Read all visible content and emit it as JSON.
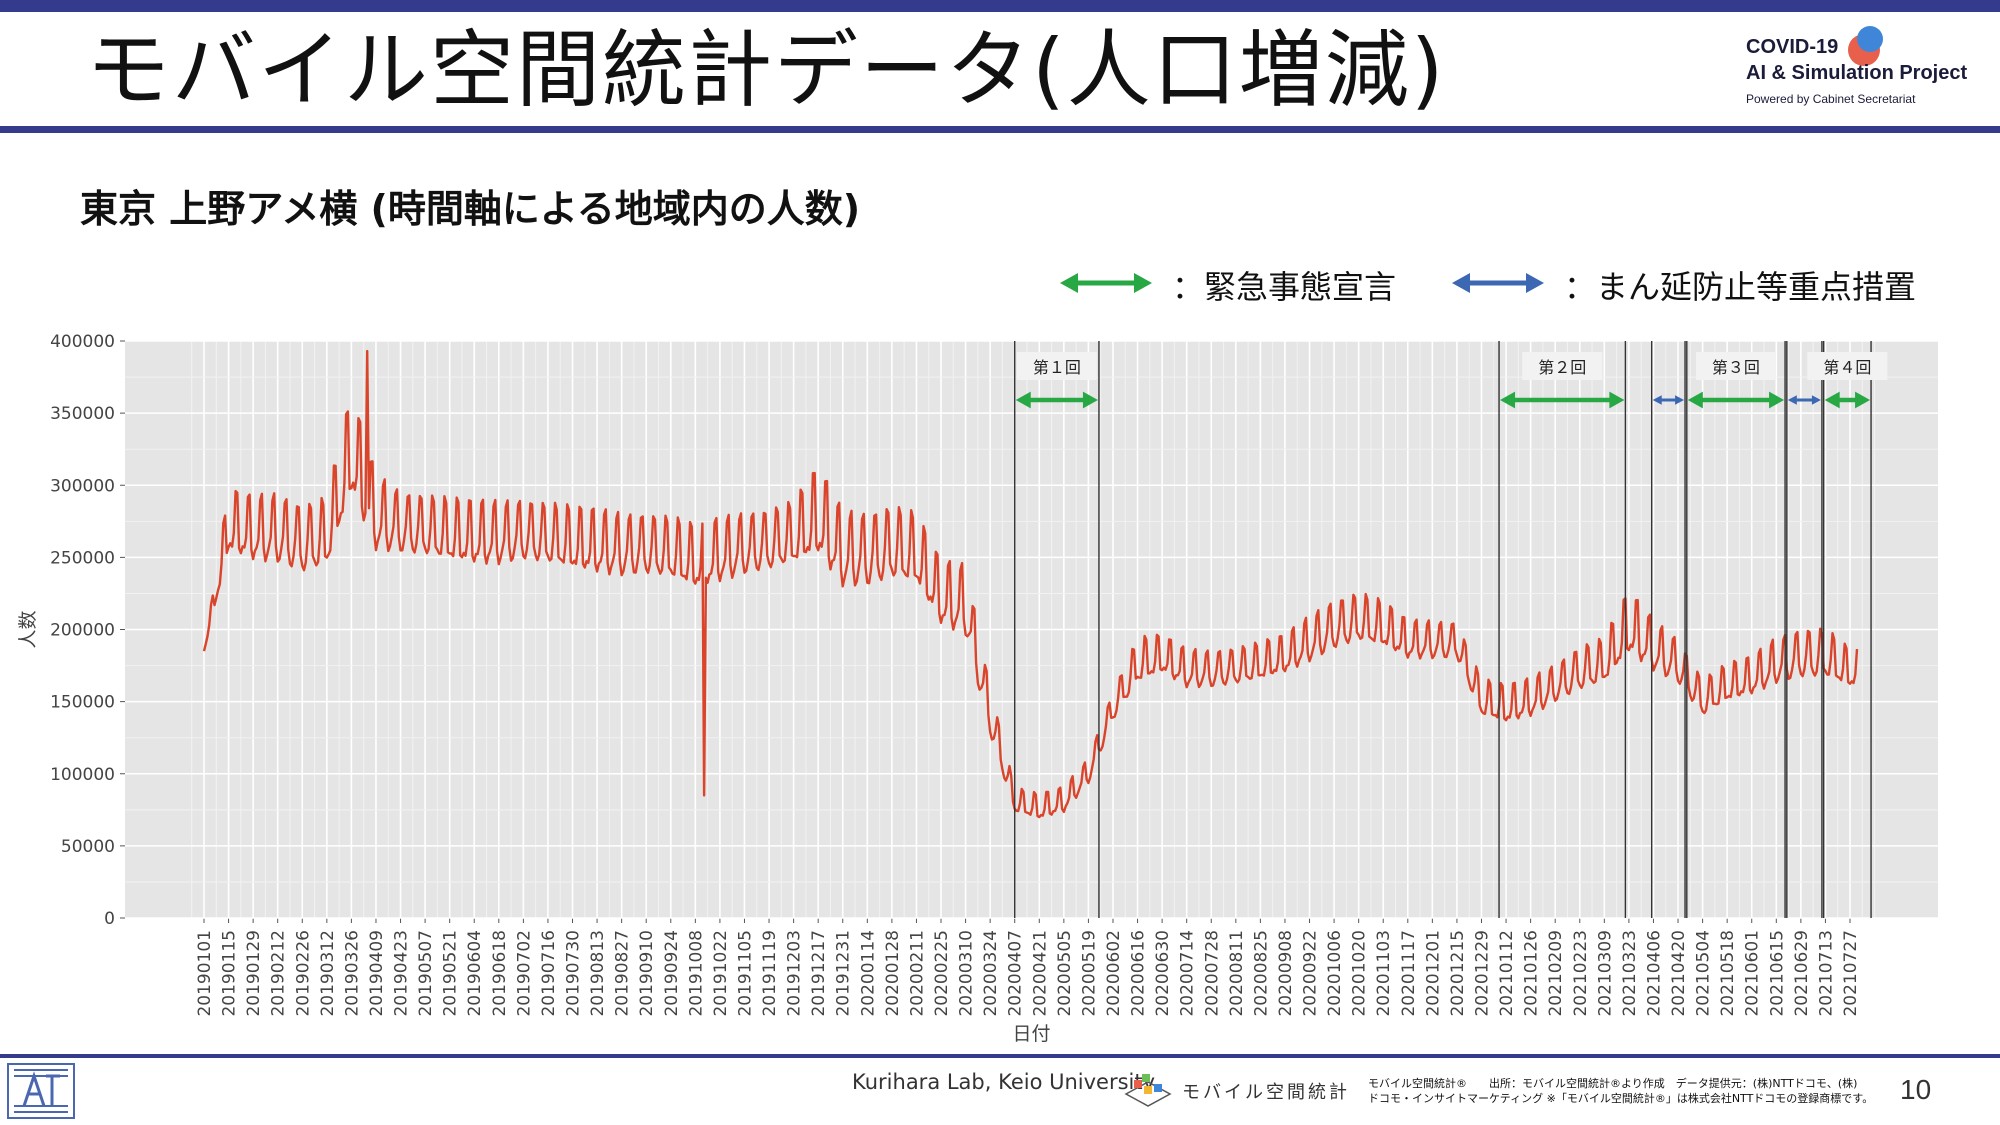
{
  "slide": {
    "title": "モバイル空間統計データ(人口増減)",
    "subtitle": "東京 上野アメ横 (時間軸による地域内の人数)",
    "page_number": "10",
    "credit": "Kurihara Lab, Keio University",
    "source_line1": "モバイル空間統計®　　出所：モバイル空間統計®より作成　データ提供元：(株)NTTドコモ、(株)",
    "source_line2": "ドコモ・インサイトマーケティング ※「モバイル空間統計®」は株式会社NTTドコモの登録商標です。",
    "mobile_logo_text": "モバイル空間統計"
  },
  "logo": {
    "line1": "COVID-19",
    "line2": "AI & Simulation Project",
    "line3": "Powered by Cabinet Secretariat"
  },
  "legend": {
    "emergency": {
      "label": "：緊急事態宣言",
      "color": "#27a844"
    },
    "priority": {
      "label": "：まん延防止等重点措置",
      "color": "#3b67b3"
    }
  },
  "colors": {
    "accent": "#353b8c",
    "series": "#d9442b",
    "plot_bg": "#e5e5e5"
  },
  "chart_data": {
    "type": "line",
    "xlabel": "日付",
    "ylabel": "人数",
    "ylim": [
      0,
      400000
    ],
    "yticks": [
      0,
      50000,
      100000,
      150000,
      200000,
      250000,
      300000,
      350000,
      400000
    ],
    "x_ticks": [
      "20190101",
      "20190115",
      "20190129",
      "20190212",
      "20190226",
      "20190312",
      "20190326",
      "20190409",
      "20190423",
      "20190507",
      "20190521",
      "20190604",
      "20190618",
      "20190702",
      "20190716",
      "20190730",
      "20190813",
      "20190827",
      "20190910",
      "20190924",
      "20191008",
      "20191022",
      "20191105",
      "20191119",
      "20191203",
      "20191217",
      "20191231",
      "20200114",
      "20200128",
      "20200211",
      "20200225",
      "20200310",
      "20200324",
      "20200407",
      "20200421",
      "20200505",
      "20200519",
      "20200602",
      "20200616",
      "20200630",
      "20200714",
      "20200728",
      "20200811",
      "20200825",
      "20200908",
      "20200922",
      "20201006",
      "20201020",
      "20201103",
      "20201117",
      "20201201",
      "20201215",
      "20201229",
      "20210112",
      "20210126",
      "20210209",
      "20210223",
      "20210309",
      "20210323",
      "20210406",
      "20210420",
      "20210504",
      "20210518",
      "20210601",
      "20210615",
      "20210629",
      "20210713",
      "20210727"
    ],
    "grid": true,
    "series": [
      {
        "x": [
          "20190101",
          "20190115",
          "20190129",
          "20190212",
          "20190226",
          "20190312",
          "20190326",
          "20190409",
          "20190423",
          "20190507",
          "20190521",
          "20190604",
          "20190618",
          "20190702",
          "20190716",
          "20190730",
          "20190813",
          "20190827",
          "20190910",
          "20190924",
          "20191008",
          "20191022",
          "20191105",
          "20191119",
          "20191203",
          "20191217",
          "20191231",
          "20200114",
          "20200128",
          "20200211",
          "20200225",
          "20200310",
          "20200324",
          "20200407",
          "20200421",
          "20200505",
          "20200519",
          "20200602",
          "20200616",
          "20200630",
          "20200714",
          "20200728",
          "20200811",
          "20200825",
          "20200908",
          "20200922",
          "20201006",
          "20201020",
          "20201103",
          "20201117",
          "20201201",
          "20201215",
          "20201229",
          "20210112",
          "20210126",
          "20210209",
          "20210223",
          "20210309",
          "20210323",
          "20210406",
          "20210420",
          "20210504",
          "20210518",
          "20210601",
          "20210615",
          "20210629",
          "20210713",
          "20210727"
        ],
        "values": [
          185000,
          270000,
          265000,
          265000,
          258000,
          262000,
          320000,
          275000,
          270000,
          268000,
          264000,
          262000,
          262000,
          265000,
          262000,
          258000,
          256000,
          254000,
          255000,
          252000,
          245000,
          250000,
          255000,
          258000,
          262000,
          275000,
          250000,
          250000,
          255000,
          250000,
          220000,
          215000,
          140000,
          80000,
          75000,
          80000,
          100000,
          145000,
          175000,
          180000,
          170000,
          170000,
          172000,
          175000,
          180000,
          190000,
          200000,
          205000,
          200000,
          190000,
          190000,
          190000,
          150000,
          145000,
          150000,
          160000,
          170000,
          175000,
          200000,
          185000,
          175000,
          150000,
          160000,
          165000,
          175000,
          180000,
          180000,
          170000
        ],
        "amplitude": [
          0,
          25000,
          25000,
          28000,
          28000,
          28000,
          40000,
          30000,
          25000,
          25000,
          25000,
          25000,
          25000,
          25000,
          25000,
          25000,
          25000,
          25000,
          25000,
          25000,
          25000,
          25000,
          25000,
          25000,
          25000,
          35000,
          30000,
          30000,
          30000,
          28000,
          25000,
          28000,
          20000,
          10000,
          10000,
          10000,
          10000,
          12000,
          18000,
          15000,
          15000,
          15000,
          15000,
          15000,
          15000,
          18000,
          20000,
          20000,
          18000,
          15000,
          15000,
          15000,
          15000,
          15000,
          15000,
          15000,
          18000,
          18000,
          25000,
          20000,
          18000,
          15000,
          15000,
          15000,
          18000,
          20000,
          20000,
          15000
        ]
      }
    ],
    "periods": [
      {
        "label": "第１回",
        "type": "emergency",
        "start": "20200407",
        "end": "20200525"
      },
      {
        "label": "第２回",
        "type": "emergency",
        "start": "20210108",
        "end": "20210321"
      },
      {
        "label": "",
        "type": "priority",
        "start": "20210405",
        "end": "20210424"
      },
      {
        "label": "第３回",
        "type": "emergency",
        "start": "20210425",
        "end": "20210620"
      },
      {
        "label": "",
        "type": "priority",
        "start": "20210621",
        "end": "20210711"
      },
      {
        "label": "第４回",
        "type": "emergency",
        "start": "20210712",
        "end": "20210808"
      }
    ],
    "annotations": [
      {
        "date": "20190404",
        "value": 393000,
        "note": "peak"
      },
      {
        "date": "20191013",
        "value": 85000,
        "note": "dip"
      }
    ]
  }
}
